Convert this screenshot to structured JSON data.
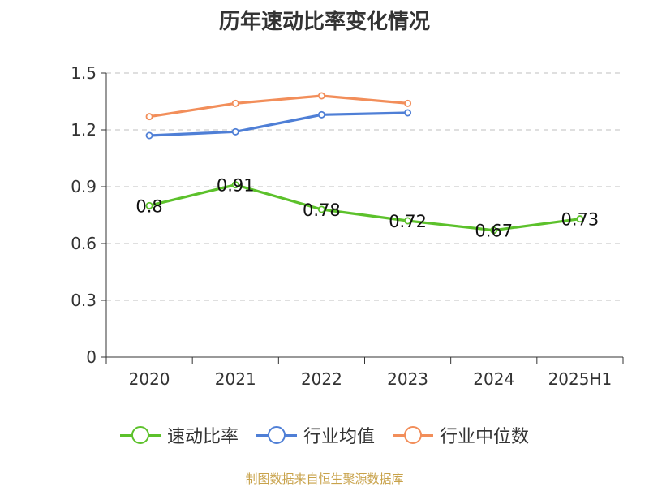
{
  "title": "历年速动比率变化情况",
  "source": "制图数据来自恒生聚源数据库",
  "chart_data": {
    "type": "line",
    "categories": [
      "2020",
      "2021",
      "2022",
      "2023",
      "2024",
      "2025H1"
    ],
    "ylim": [
      0,
      1.5
    ],
    "yticks": [
      "0",
      "0.3",
      "0.6",
      "0.9",
      "1.2",
      "1.5"
    ],
    "grid": true,
    "legend_position": "bottom",
    "series": [
      {
        "name": "速动比率",
        "color": "#5cc12b",
        "values": [
          0.8,
          0.91,
          0.78,
          0.72,
          0.67,
          0.73
        ],
        "labels": [
          "0.8",
          "0.91",
          "0.78",
          "0.72",
          "0.67",
          "0.73"
        ]
      },
      {
        "name": "行业均值",
        "color": "#4f7fd6",
        "values": [
          1.17,
          1.19,
          1.28,
          1.29,
          null,
          null
        ]
      },
      {
        "name": "行业中位数",
        "color": "#f28e5a",
        "values": [
          1.27,
          1.34,
          1.38,
          1.34,
          null,
          null
        ]
      }
    ]
  }
}
